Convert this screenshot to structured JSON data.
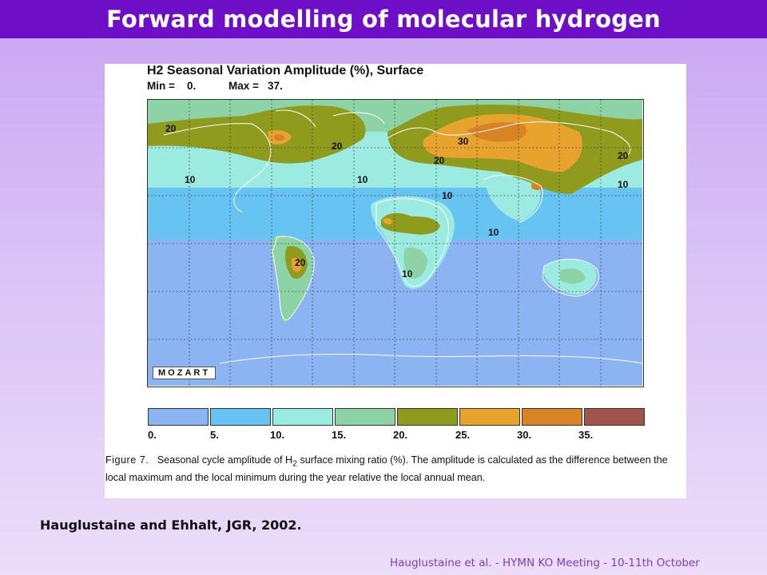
{
  "slide": {
    "title": "Forward modelling of molecular hydrogen",
    "reference": "Hauglustaine and Ehhalt, JGR, 2002.",
    "footer": "Hauglustaine et al. - HYMN KO Meeting - 10-11th October"
  },
  "figure": {
    "title": "H2 Seasonal Variation Amplitude (%), Surface",
    "min_label": "Min =",
    "min_value": "0.",
    "max_label": "Max =",
    "max_value": "37.",
    "model_label": "MOZART",
    "contour_labels": [
      "20",
      "20",
      "10",
      "30",
      "20",
      "20",
      "10",
      "10",
      "10",
      "20",
      "10",
      "10"
    ],
    "caption": {
      "figure_label": "Figure 7.",
      "text_before": "Seasonal cycle amplitude of H",
      "subscript": "2",
      "text_after": " surface mixing ratio (%). The amplitude is calculated as the difference between the local maximum and the local minimum during the year relative the local annual mean."
    }
  },
  "colorbar": {
    "levels": [
      "0.",
      "5.",
      "10.",
      "15.",
      "20.",
      "25.",
      "30.",
      "35."
    ],
    "colors": [
      "#8cb4f2",
      "#67c3f2",
      "#9bebe0",
      "#8ed3a6",
      "#8f9b1d",
      "#e8a22e",
      "#d88326",
      "#a0544c"
    ]
  },
  "colors": {
    "title_bar": "#6e0fc7",
    "title_text": "#ffffff",
    "footer_text": "#7a3fc0"
  }
}
